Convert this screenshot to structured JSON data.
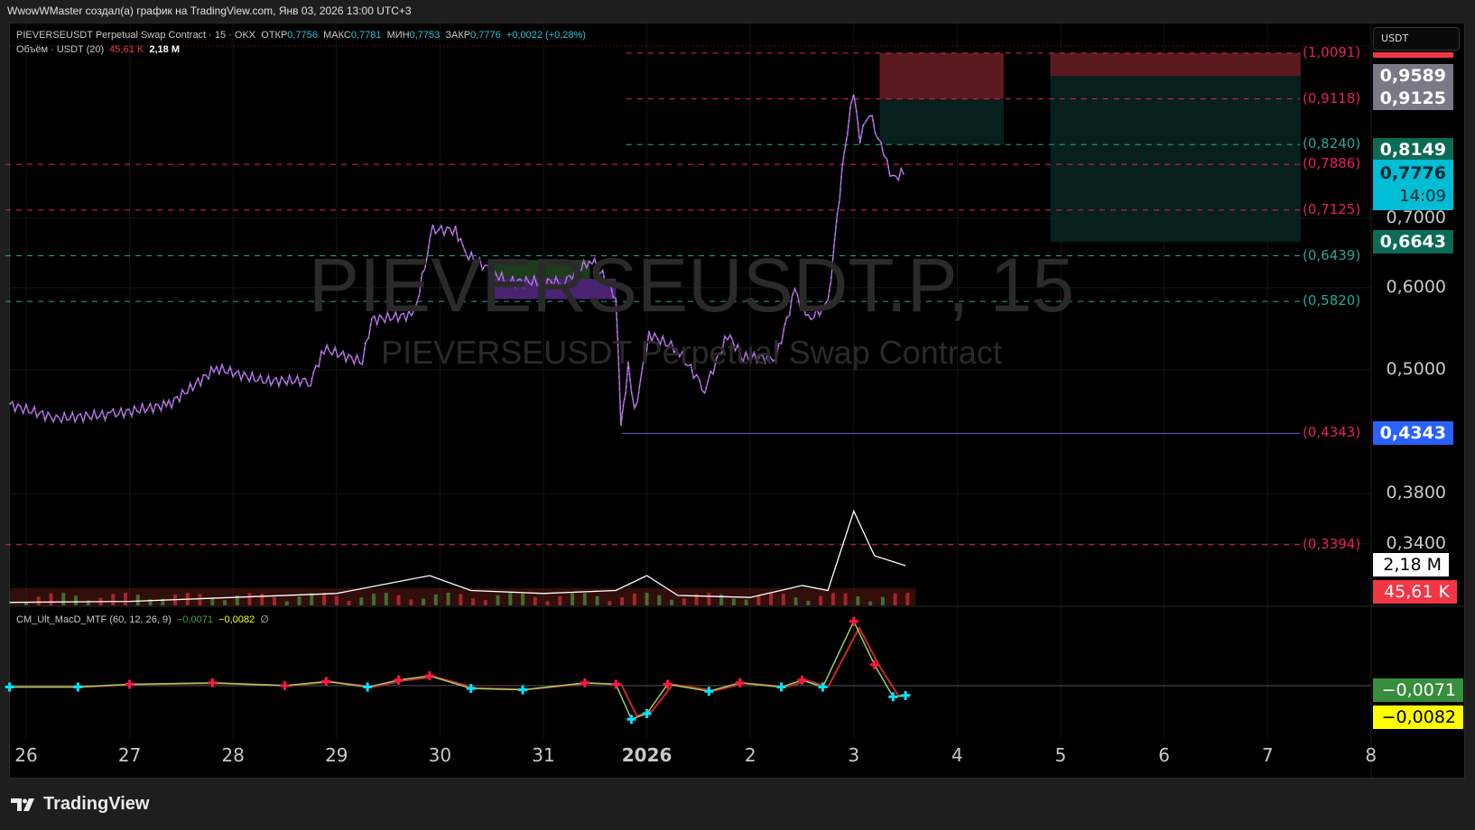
{
  "header": {
    "attribution": "WwowWMaster создал(а) график на TradingView.com, Янв 03, 2026 13:00 UTC+3"
  },
  "legend": {
    "symbol": "PIEVERSEUSDT Perpetual Swap Contract · 15 · OKX",
    "open_label": "ОТКР",
    "open": "0,7756",
    "high_label": "МАКС",
    "high": "0,7781",
    "low_label": "МИН",
    "low": "0,7753",
    "close_label": "ЗАКР",
    "close": "0,7776",
    "change": "+0,0022 (+0,28%)",
    "volume_label": "Объём · USDT (20)",
    "volume_value": "45,61 K",
    "volume_ma": "2,18 M"
  },
  "macd_legend": {
    "name": "CM_Ult_MacD_MTF (60, 12, 26, 9)",
    "macd": "−0,0071",
    "signal": "−0,0082",
    "extra": "∅"
  },
  "watermark": {
    "symbol": "PIEVERSEUSDT.P, 15",
    "description": "PIEVERSEUSDT Perpetual Swap Contract"
  },
  "currency_button": "USDT",
  "branding": "TradingView",
  "colors": {
    "red": "#f23645",
    "green": "#22ab94",
    "level_red": "#e91e63",
    "level_green": "#26a69a",
    "blue": "#2962ff",
    "cyan": "#00bcd4",
    "candle_up": "#f5d76e",
    "candle_down": "#9c5fe0"
  },
  "chart_data": {
    "type": "line",
    "y_scale": "log",
    "x_tick_labels": [
      "26",
      "27",
      "28",
      "29",
      "30",
      "31",
      "2026",
      "2",
      "3",
      "4",
      "5",
      "6",
      "7",
      "8"
    ],
    "y_tick_labels": [
      "0,7000",
      "0,6000",
      "0,5000",
      "0,3800",
      "0,3400"
    ],
    "y_ticks": [
      0.7,
      0.6,
      0.5,
      0.38,
      0.34
    ],
    "price_path": [
      [
        -0.16,
        0.463
      ],
      [
        0.29,
        0.449
      ],
      [
        0.84,
        0.453
      ],
      [
        1.38,
        0.463
      ],
      [
        1.84,
        0.502
      ],
      [
        2.29,
        0.488
      ],
      [
        2.75,
        0.488
      ],
      [
        2.88,
        0.524
      ],
      [
        3.25,
        0.509
      ],
      [
        3.34,
        0.559
      ],
      [
        3.75,
        0.565
      ],
      [
        3.93,
        0.682
      ],
      [
        4.15,
        0.682
      ],
      [
        4.25,
        0.647
      ],
      [
        4.65,
        0.608
      ],
      [
        5.2,
        0.608
      ],
      [
        5.47,
        0.639
      ],
      [
        5.7,
        0.589
      ],
      [
        5.75,
        0.44
      ],
      [
        5.82,
        0.504
      ],
      [
        5.88,
        0.454
      ],
      [
        6.02,
        0.541
      ],
      [
        6.29,
        0.524
      ],
      [
        6.56,
        0.479
      ],
      [
        6.78,
        0.541
      ],
      [
        6.93,
        0.514
      ],
      [
        7.25,
        0.514
      ],
      [
        7.43,
        0.595
      ],
      [
        7.56,
        0.559
      ],
      [
        7.75,
        0.577
      ],
      [
        7.84,
        0.702
      ],
      [
        7.91,
        0.813
      ],
      [
        8.0,
        0.93
      ],
      [
        8.06,
        0.836
      ],
      [
        8.15,
        0.885
      ],
      [
        8.29,
        0.805
      ],
      [
        8.38,
        0.764
      ],
      [
        8.51,
        0.7776
      ]
    ],
    "levels": [
      {
        "price": 1.0091,
        "label": "(1,0091)",
        "color": "red",
        "from_day": 5.8
      },
      {
        "price": 0.9118,
        "label": "(0,9118)",
        "color": "red",
        "from_day": 5.8
      },
      {
        "price": 0.824,
        "label": "(0,8240)",
        "color": "green",
        "from_day": 5.8
      },
      {
        "price": 0.7886,
        "label": "(0,7886)",
        "color": "red",
        "from_day": -0.2
      },
      {
        "price": 0.7125,
        "label": "(0,7125)",
        "color": "red",
        "from_day": -0.2
      },
      {
        "price": 0.6439,
        "label": "(0,6439)",
        "color": "green",
        "from_day": -0.2
      },
      {
        "price": 0.582,
        "label": "(0,5820)",
        "color": "green",
        "from_day": -0.2
      },
      {
        "price": 0.4343,
        "label": "(0,4343)",
        "color": "red",
        "from_day": 5.76
      },
      {
        "price": 0.3394,
        "label": "(0,3394)",
        "color": "red",
        "from_day": -0.2
      }
    ],
    "zones": [
      {
        "from_day": 8.25,
        "to_day": 9.45,
        "top": 1.0091,
        "bottom": 0.9118,
        "color": "#5a1a20"
      },
      {
        "from_day": 8.25,
        "to_day": 9.45,
        "top": 0.9118,
        "bottom": 0.824,
        "color": "#07201d"
      },
      {
        "from_day": 9.9,
        "to_day": 12.32,
        "top": 1.0091,
        "bottom": 0.9589,
        "color": "#5a1a20"
      },
      {
        "from_day": 9.9,
        "to_day": 12.32,
        "top": 0.9589,
        "bottom": 0.6643,
        "color": "#07201d"
      },
      {
        "from_day": 4.5,
        "to_day": 5.45,
        "top": 0.638,
        "bottom": 0.612,
        "color": "#1d3b1d"
      },
      {
        "from_day": 4.5,
        "to_day": 5.7,
        "top": 0.612,
        "bottom": 0.585,
        "color": "#4a2470"
      }
    ],
    "price_badges": [
      {
        "price": 0.9589,
        "text": "0,9589",
        "bg": "#787b86",
        "fg": "#ffffff"
      },
      {
        "price": 0.9125,
        "text": "0,9125",
        "bg": "#787b86",
        "fg": "#ffffff"
      },
      {
        "price": 0.8149,
        "text": "0,8149",
        "bg": "#0b6b57",
        "fg": "#ffffff"
      },
      {
        "price": 0.6643,
        "text": "0,6643",
        "bg": "#0b6b57",
        "fg": "#ffffff"
      },
      {
        "price": 0.4343,
        "text": "0,4343",
        "bg": "#2962ff",
        "fg": "#ffffff"
      }
    ],
    "last_price": {
      "text": "0,7776",
      "countdown": "14:09"
    },
    "volume_ma_path_M": [
      [
        -0.16,
        0.3
      ],
      [
        1,
        0.4
      ],
      [
        2,
        0.8
      ],
      [
        3,
        1.2
      ],
      [
        3.9,
        3.0
      ],
      [
        4.3,
        1.5
      ],
      [
        5,
        1.2
      ],
      [
        5.7,
        1.5
      ],
      [
        6.0,
        3.0
      ],
      [
        6.3,
        1.0
      ],
      [
        7.0,
        0.8
      ],
      [
        7.5,
        2.0
      ],
      [
        7.75,
        1.5
      ],
      [
        8.0,
        9.5
      ],
      [
        8.2,
        5.0
      ],
      [
        8.5,
        4.0
      ]
    ],
    "macd_path": [
      [
        -0.16,
        -0.001
      ],
      [
        0.5,
        -0.001
      ],
      [
        1,
        0.001
      ],
      [
        1.8,
        0.002
      ],
      [
        2.5,
        0
      ],
      [
        2.9,
        0.003
      ],
      [
        3.3,
        -0.001
      ],
      [
        3.6,
        0.004
      ],
      [
        3.9,
        0.007
      ],
      [
        4.3,
        -0.002
      ],
      [
        4.8,
        -0.003
      ],
      [
        5.4,
        0.002
      ],
      [
        5.7,
        0.001
      ],
      [
        5.85,
        -0.024
      ],
      [
        6.0,
        -0.02
      ],
      [
        6.2,
        0.001
      ],
      [
        6.6,
        -0.004
      ],
      [
        6.9,
        0.002
      ],
      [
        7.3,
        -0.001
      ],
      [
        7.5,
        0.004
      ],
      [
        7.7,
        -0.001
      ],
      [
        8.0,
        0.046
      ],
      [
        8.2,
        0.015
      ],
      [
        8.38,
        -0.008
      ],
      [
        8.5,
        -0.0071
      ]
    ],
    "macd_badges": [
      {
        "text": "−0,0071",
        "bg": "#388e3c",
        "fg": "#ffffff"
      },
      {
        "text": "−0,0082",
        "bg": "#ffff00",
        "fg": "#000000"
      }
    ]
  }
}
